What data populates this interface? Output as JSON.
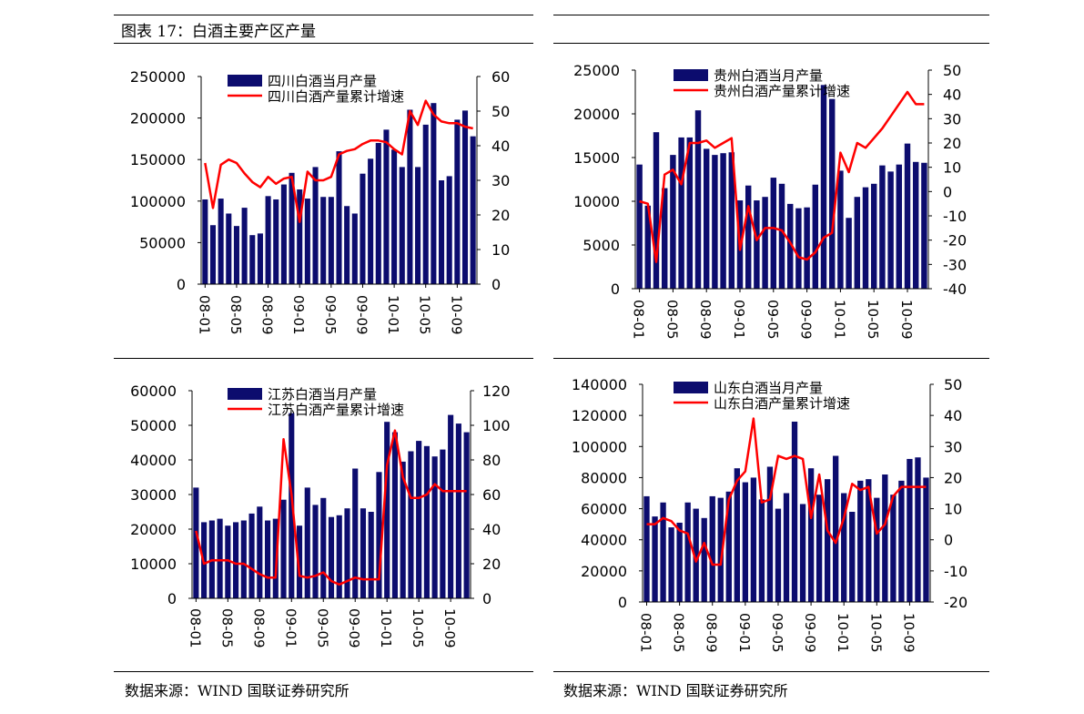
{
  "figure_title": "图表 17：白酒主要产区产量",
  "source_left": "数据来源：WIND 国联证券研究所",
  "source_right": "数据来源：WIND 国联证券研究所",
  "colors": {
    "bar": "#0c0c6e",
    "line": "#ff0000",
    "axis": "#000000"
  },
  "chart_data": [
    {
      "type": "bar",
      "legend_bar": "四川白酒当月产量",
      "legend_line": "四川白酒产量累计增速",
      "ylim_left": [
        0,
        250000
      ],
      "yticks_left": [
        "0",
        "50000",
        "100000",
        "150000",
        "200000",
        "250000"
      ],
      "ylim_right": [
        0,
        60
      ],
      "yticks_right": [
        "0",
        "10",
        "20",
        "30",
        "40",
        "50",
        "60"
      ],
      "categories": [
        "08-01",
        "08-02",
        "08-03",
        "08-04",
        "08-05",
        "08-06",
        "08-07",
        "08-08",
        "08-09",
        "08-10",
        "08-11",
        "08-12",
        "09-01",
        "09-02",
        "09-03",
        "09-04",
        "09-05",
        "09-06",
        "09-07",
        "09-08",
        "09-09",
        "09-10",
        "09-11",
        "09-12",
        "10-01",
        "10-02",
        "10-03",
        "10-04",
        "10-05",
        "10-06",
        "10-07",
        "10-08",
        "10-09",
        "10-10",
        "10-11"
      ],
      "xtick_labels": [
        "08-01",
        "08-05",
        "08-09",
        "09-01",
        "09-05",
        "09-09",
        "10-01",
        "10-05",
        "10-09"
      ],
      "series": [
        {
          "name": "四川白酒当月产量",
          "kind": "bar",
          "values": [
            102000,
            71000,
            103000,
            85000,
            70000,
            92000,
            59000,
            61000,
            106000,
            102000,
            120000,
            134000,
            114000,
            103000,
            141000,
            105000,
            105000,
            160000,
            94000,
            85000,
            133000,
            151000,
            170000,
            186000,
            162000,
            141000,
            210000,
            141000,
            192000,
            218000,
            125000,
            130000,
            198000,
            209000,
            178000
          ]
        },
        {
          "name": "四川白酒产量累计增速",
          "kind": "line",
          "values": [
            35,
            22,
            34.5,
            36,
            35,
            32,
            29.5,
            28,
            31,
            29,
            30.5,
            31,
            18,
            32.5,
            30,
            30,
            31,
            37.5,
            38.5,
            39,
            40.5,
            41.5,
            41.5,
            41,
            39,
            37.5,
            50,
            46,
            53,
            49,
            47,
            46.5,
            46.5,
            45.5,
            45
          ]
        }
      ]
    },
    {
      "type": "bar",
      "legend_bar": "贵州白酒当月产量",
      "legend_line": "贵州白酒产量累计增速",
      "ylim_left": [
        0,
        25000
      ],
      "yticks_left": [
        "0",
        "5000",
        "10000",
        "15000",
        "20000",
        "25000"
      ],
      "ylim_right": [
        -40,
        50
      ],
      "yticks_right": [
        "-40",
        "-30",
        "-20",
        "-10",
        "0",
        "10",
        "20",
        "30",
        "40",
        "50"
      ],
      "categories": [
        "08-01",
        "08-02",
        "08-03",
        "08-04",
        "08-05",
        "08-06",
        "08-07",
        "08-08",
        "08-09",
        "08-10",
        "08-11",
        "08-12",
        "09-01",
        "09-02",
        "09-03",
        "09-04",
        "09-05",
        "09-06",
        "09-07",
        "09-08",
        "09-09",
        "09-10",
        "09-11",
        "09-12",
        "10-01",
        "10-02",
        "10-03",
        "10-04",
        "10-05",
        "10-06",
        "10-07",
        "10-08",
        "10-09",
        "10-10",
        "10-11"
      ],
      "xtick_labels": [
        "08-01",
        "08-05",
        "08-09",
        "09-01",
        "09-05",
        "09-09",
        "10-01",
        "10-05",
        "10-09"
      ],
      "series": [
        {
          "name": "贵州白酒当月产量",
          "kind": "bar",
          "values": [
            14200,
            9500,
            17900,
            11500,
            15300,
            17300,
            17300,
            20400,
            16000,
            15300,
            15500,
            15600,
            10100,
            11800,
            10100,
            10500,
            12700,
            12000,
            9700,
            9200,
            9300,
            11900,
            23300,
            21700,
            13500,
            8100,
            10500,
            11600,
            12000,
            14100,
            13400,
            14200,
            16600,
            14500,
            14400
          ]
        },
        {
          "name": "贵州白酒产量累计增速",
          "kind": "line",
          "values": [
            -4,
            -5,
            -29,
            7,
            9,
            3,
            20,
            20,
            21,
            18,
            20,
            22,
            -24,
            -6,
            -20,
            -15,
            -15,
            -16,
            -21,
            -27,
            -28,
            -25,
            -19,
            -17,
            16,
            8,
            20,
            18,
            22,
            26,
            31,
            36,
            41,
            36,
            36
          ]
        }
      ]
    },
    {
      "type": "bar",
      "legend_bar": "江苏白酒当月产量",
      "legend_line": "江苏白酒产量累计增速",
      "ylim_left": [
        0,
        60000
      ],
      "yticks_left": [
        "0",
        "10000",
        "20000",
        "30000",
        "40000",
        "50000",
        "60000"
      ],
      "ylim_right": [
        0,
        120
      ],
      "yticks_right": [
        "0",
        "20",
        "40",
        "60",
        "80",
        "100",
        "120"
      ],
      "categories": [
        "08-01",
        "08-02",
        "08-03",
        "08-04",
        "08-05",
        "08-06",
        "08-07",
        "08-08",
        "08-09",
        "08-10",
        "08-11",
        "08-12",
        "09-01",
        "09-02",
        "09-03",
        "09-04",
        "09-05",
        "09-06",
        "09-07",
        "09-08",
        "09-09",
        "09-10",
        "09-11",
        "09-12",
        "10-01",
        "10-02",
        "10-03",
        "10-04",
        "10-05",
        "10-06",
        "10-07",
        "10-08",
        "10-09",
        "10-10",
        "10-11"
      ],
      "xtick_labels": [
        "08-01",
        "08-05",
        "08-09",
        "09-01",
        "09-05",
        "09-09",
        "10-01",
        "10-05",
        "10-09"
      ],
      "series": [
        {
          "name": "江苏白酒当月产量",
          "kind": "bar",
          "values": [
            32000,
            22000,
            22500,
            23000,
            21000,
            22000,
            22500,
            24500,
            26500,
            22500,
            23000,
            28500,
            53500,
            21000,
            32000,
            27000,
            29000,
            23500,
            24000,
            26000,
            37500,
            26000,
            25000,
            36500,
            51000,
            48000,
            39500,
            42500,
            45500,
            44000,
            41000,
            43000,
            53000,
            50500,
            48000
          ]
        },
        {
          "name": "江苏白酒产量累计增速",
          "kind": "line",
          "values": [
            39,
            20,
            22,
            22,
            22,
            20,
            20,
            17,
            14,
            12,
            12,
            92,
            60,
            13,
            12,
            13,
            15,
            10,
            8,
            10,
            12,
            11,
            11,
            11,
            77,
            97,
            70,
            58,
            58,
            60,
            66,
            62,
            62,
            62,
            62
          ]
        }
      ]
    },
    {
      "type": "bar",
      "legend_bar": "山东白酒当月产量",
      "legend_line": "山东白酒产量累计增速",
      "ylim_left": [
        0,
        140000
      ],
      "yticks_left": [
        "0",
        "20000",
        "40000",
        "60000",
        "80000",
        "100000",
        "120000",
        "140000"
      ],
      "ylim_right": [
        -20,
        50
      ],
      "yticks_right": [
        "-20",
        "-10",
        "0",
        "10",
        "20",
        "30",
        "40",
        "50"
      ],
      "categories": [
        "08-01",
        "08-02",
        "08-03",
        "08-04",
        "08-05",
        "08-06",
        "08-07",
        "08-08",
        "08-09",
        "08-10",
        "08-11",
        "08-12",
        "09-01",
        "09-02",
        "09-03",
        "09-04",
        "09-05",
        "09-06",
        "09-07",
        "09-08",
        "09-09",
        "09-10",
        "09-11",
        "09-12",
        "10-01",
        "10-02",
        "10-03",
        "10-04",
        "10-05",
        "10-06",
        "10-07",
        "10-08",
        "10-09",
        "10-10",
        "10-11"
      ],
      "xtick_labels": [
        "08-01",
        "08-05",
        "08-09",
        "09-01",
        "09-05",
        "09-09",
        "10-01",
        "10-05",
        "10-09"
      ],
      "series": [
        {
          "name": "山东白酒当月产量",
          "kind": "bar",
          "values": [
            68000,
            55000,
            64000,
            48000,
            51000,
            64000,
            60000,
            54000,
            68000,
            67000,
            71000,
            86000,
            77000,
            80000,
            66000,
            87000,
            60000,
            70000,
            116000,
            63000,
            86000,
            69000,
            79000,
            94000,
            70000,
            58000,
            78000,
            79000,
            67000,
            82000,
            69000,
            78000,
            92000,
            93000,
            80000
          ]
        },
        {
          "name": "山东白酒产量累计增速",
          "kind": "line",
          "values": [
            5,
            5,
            7,
            6,
            3,
            2,
            -7,
            -1,
            -8,
            -8,
            13,
            19,
            22,
            39,
            12,
            13,
            27,
            26,
            27,
            26,
            7,
            21,
            3,
            -1,
            7,
            18,
            16,
            17,
            2,
            5,
            14,
            17,
            17,
            17,
            17
          ]
        }
      ]
    }
  ]
}
